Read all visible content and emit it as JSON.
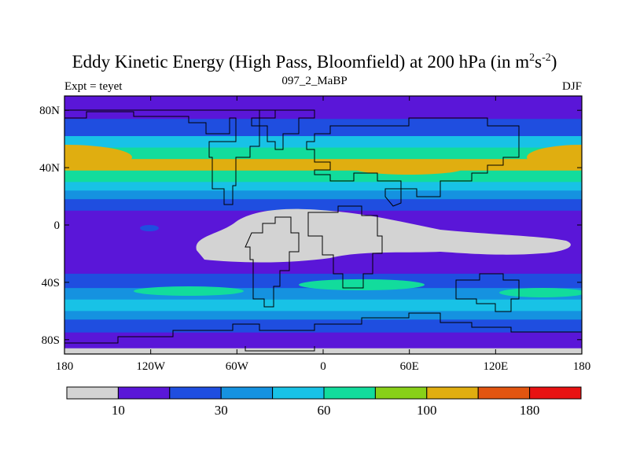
{
  "chart_data": {
    "type": "heatmap",
    "title_main": "Eddy Kinetic Energy (High Pass, Bloomfield) at 200 hPa (in m",
    "title_sup1": "2",
    "title_mid": "s",
    "title_sup2": "-2",
    "title_close": ")",
    "left_label": "Expt = teyet",
    "center_label": "097_2_MaBP",
    "right_label": "DJF",
    "x_ticks": [
      {
        "value": -180,
        "label": "180"
      },
      {
        "value": -120,
        "label": "120W"
      },
      {
        "value": -60,
        "label": "60W"
      },
      {
        "value": 0,
        "label": "0"
      },
      {
        "value": 60,
        "label": "60E"
      },
      {
        "value": 120,
        "label": "120E"
      },
      {
        "value": 180,
        "label": "180"
      }
    ],
    "y_ticks": [
      {
        "value": 80,
        "label": "80N"
      },
      {
        "value": 40,
        "label": "40N"
      },
      {
        "value": 0,
        "label": "0"
      },
      {
        "value": -40,
        "label": "40S"
      },
      {
        "value": -80,
        "label": "80S"
      }
    ],
    "xlim": [
      -180,
      180
    ],
    "ylim": [
      -90,
      90
    ],
    "colorbar": {
      "colors": [
        "#d3d3d3",
        "#5a16d8",
        "#1f4ee0",
        "#1592e0",
        "#18c2e6",
        "#12dc9c",
        "#88d018",
        "#e0ae10",
        "#e25510",
        "#e81212"
      ],
      "labels": [
        {
          "boundary": 1,
          "text": "10"
        },
        {
          "boundary": 3,
          "text": "30"
        },
        {
          "boundary": 5,
          "text": "60"
        },
        {
          "boundary": 7,
          "text": "100"
        },
        {
          "boundary": 9,
          "text": "180"
        }
      ]
    },
    "levels_by_latitude": [
      {
        "lat": 90,
        "level": 1
      },
      {
        "lat": 84,
        "level": 1
      },
      {
        "lat": 74,
        "level": 2
      },
      {
        "lat": 62,
        "level": 4
      },
      {
        "lat": 54,
        "level": 5
      },
      {
        "lat": 46,
        "level": 7
      },
      {
        "lat": 38,
        "level": 5
      },
      {
        "lat": 30,
        "level": 4
      },
      {
        "lat": 24,
        "level": 3
      },
      {
        "lat": 18,
        "level": 2
      },
      {
        "lat": 10,
        "level": 1
      },
      {
        "lat": -20,
        "level": 1
      },
      {
        "lat": -34,
        "level": 2
      },
      {
        "lat": -44,
        "level": 3
      },
      {
        "lat": -52,
        "level": 4
      },
      {
        "lat": -60,
        "level": 3
      },
      {
        "lat": -66,
        "level": 2
      },
      {
        "lat": -75,
        "level": 1
      },
      {
        "lat": -84,
        "level": 1
      },
      {
        "lat": -86,
        "level": 0
      },
      {
        "lat": -90,
        "level": 0
      }
    ]
  }
}
